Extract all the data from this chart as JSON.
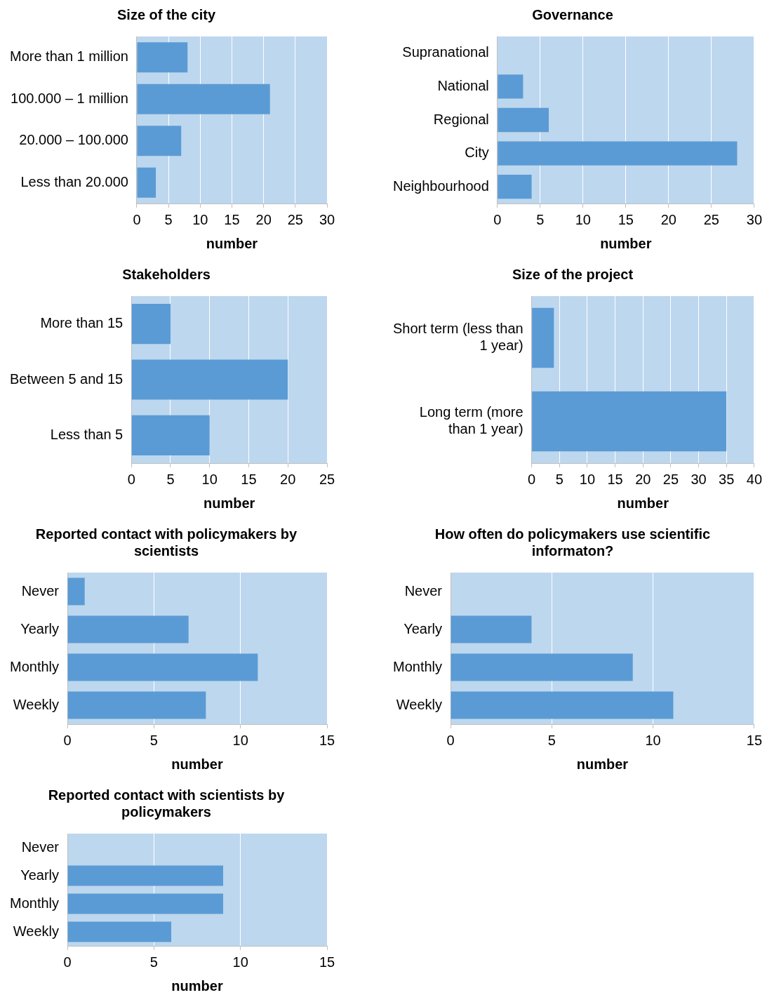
{
  "chart_data": [
    {
      "type": "bar",
      "orientation": "horizontal",
      "title": "Size of the city",
      "xlabel": "number",
      "categories": [
        "More than 1 million",
        "100.000 – 1 million",
        "20.000 – 100.000",
        "Less than 20.000"
      ],
      "values": [
        8,
        21,
        7,
        3
      ],
      "color": "#5b9bd5",
      "xlim": [
        0,
        30
      ],
      "xticks": [
        0,
        5,
        10,
        15,
        20,
        25,
        30
      ],
      "grid": "x"
    },
    {
      "type": "bar",
      "orientation": "horizontal",
      "title": "Governance",
      "xlabel": "number",
      "categories": [
        "Supranational",
        "National",
        "Regional",
        "City",
        "Neighbourhood"
      ],
      "values": [
        0,
        3,
        6,
        28,
        4
      ],
      "color": "#5b9bd5",
      "xlim": [
        0,
        30
      ],
      "xticks": [
        0,
        5,
        10,
        15,
        20,
        25,
        30
      ],
      "grid": "x"
    },
    {
      "type": "bar",
      "orientation": "horizontal",
      "title": "Stakeholders",
      "xlabel": "number",
      "categories": [
        "More than 15",
        "Between 5 and 15",
        "Less than 5"
      ],
      "values": [
        5,
        20,
        10
      ],
      "color": "#5b9bd5",
      "xlim": [
        0,
        25
      ],
      "xticks": [
        0,
        5,
        10,
        15,
        20,
        25
      ],
      "grid": "x"
    },
    {
      "type": "bar",
      "orientation": "horizontal",
      "title": "Size of the project",
      "xlabel": "number",
      "categories": [
        "Short term (less than 1 year)",
        "Long term (more than 1 year)"
      ],
      "values": [
        4,
        35
      ],
      "color": "#5b9bd5",
      "xlim": [
        0,
        40
      ],
      "xticks": [
        0,
        5,
        10,
        15,
        20,
        25,
        30,
        35,
        40
      ],
      "grid": "x"
    },
    {
      "type": "bar",
      "orientation": "horizontal",
      "title": "Reported contact with policymakers by scientists",
      "xlabel": "number",
      "categories": [
        "Never",
        "Yearly",
        "Monthly",
        "Weekly"
      ],
      "values": [
        1,
        7,
        11,
        8
      ],
      "color": "#5b9bd5",
      "xlim": [
        0,
        15
      ],
      "xticks": [
        0,
        5,
        10,
        15
      ],
      "grid": "x"
    },
    {
      "type": "bar",
      "orientation": "horizontal",
      "title": "How often do policymakers use scientific informaton?",
      "xlabel": "number",
      "categories": [
        "Never",
        "Yearly",
        "Monthly",
        "Weekly"
      ],
      "values": [
        0,
        4,
        9,
        11
      ],
      "color": "#5b9bd5",
      "xlim": [
        0,
        15
      ],
      "xticks": [
        0,
        5,
        10,
        15
      ],
      "grid": "x"
    },
    {
      "type": "bar",
      "orientation": "horizontal",
      "title": "Reported contact with scientists by policymakers",
      "xlabel": "number",
      "categories": [
        "Never",
        "Yearly",
        "Monthly",
        "Weekly"
      ],
      "values": [
        0,
        9,
        9,
        6
      ],
      "color": "#5b9bd5",
      "xlim": [
        0,
        15
      ],
      "xticks": [
        0,
        5,
        10,
        15
      ],
      "grid": "x"
    }
  ]
}
